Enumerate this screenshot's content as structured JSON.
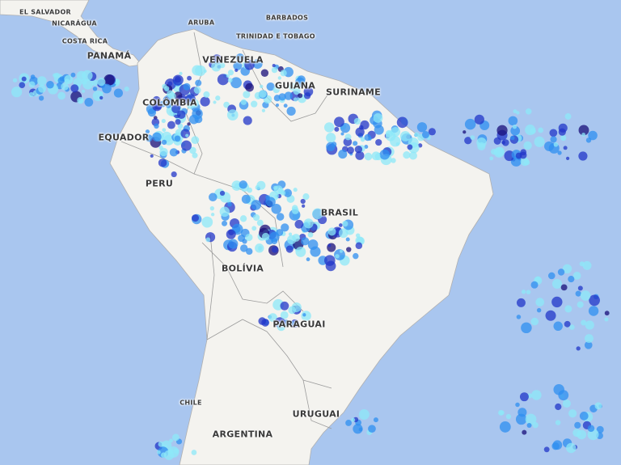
{
  "map": {
    "colors": {
      "ocean": "#a9c6ef",
      "land": "#f4f3ef",
      "border": "#9c9c9c",
      "rain_light": "#8ee8f8",
      "rain_mid": "#2f8ff0",
      "rain_heavy": "#2236c8",
      "rain_extreme": "#1a0f7a"
    },
    "labels": {
      "el_salvador": "EL SALVADOR",
      "nicaragua": "NICARÁGUA",
      "costa_rica": "COSTA RICA",
      "panama": "PANAMÁ",
      "aruba": "ARUBA",
      "barbados": "BARBADOS",
      "trinidad": "TRINIDAD E TOBAGO",
      "venezuela": "VENEZUELA",
      "guiana": "GUIANA",
      "suriname": "SURINAME",
      "colombia": "COLÔMBIA",
      "equador": "EQUADOR",
      "peru": "PERU",
      "brasil": "BRASIL",
      "bolivia": "BOLÍVIA",
      "paraguai": "PARAGUAI",
      "chile": "CHILE",
      "uruguai": "URUGUAI",
      "argentina": "ARGENTINA"
    }
  }
}
